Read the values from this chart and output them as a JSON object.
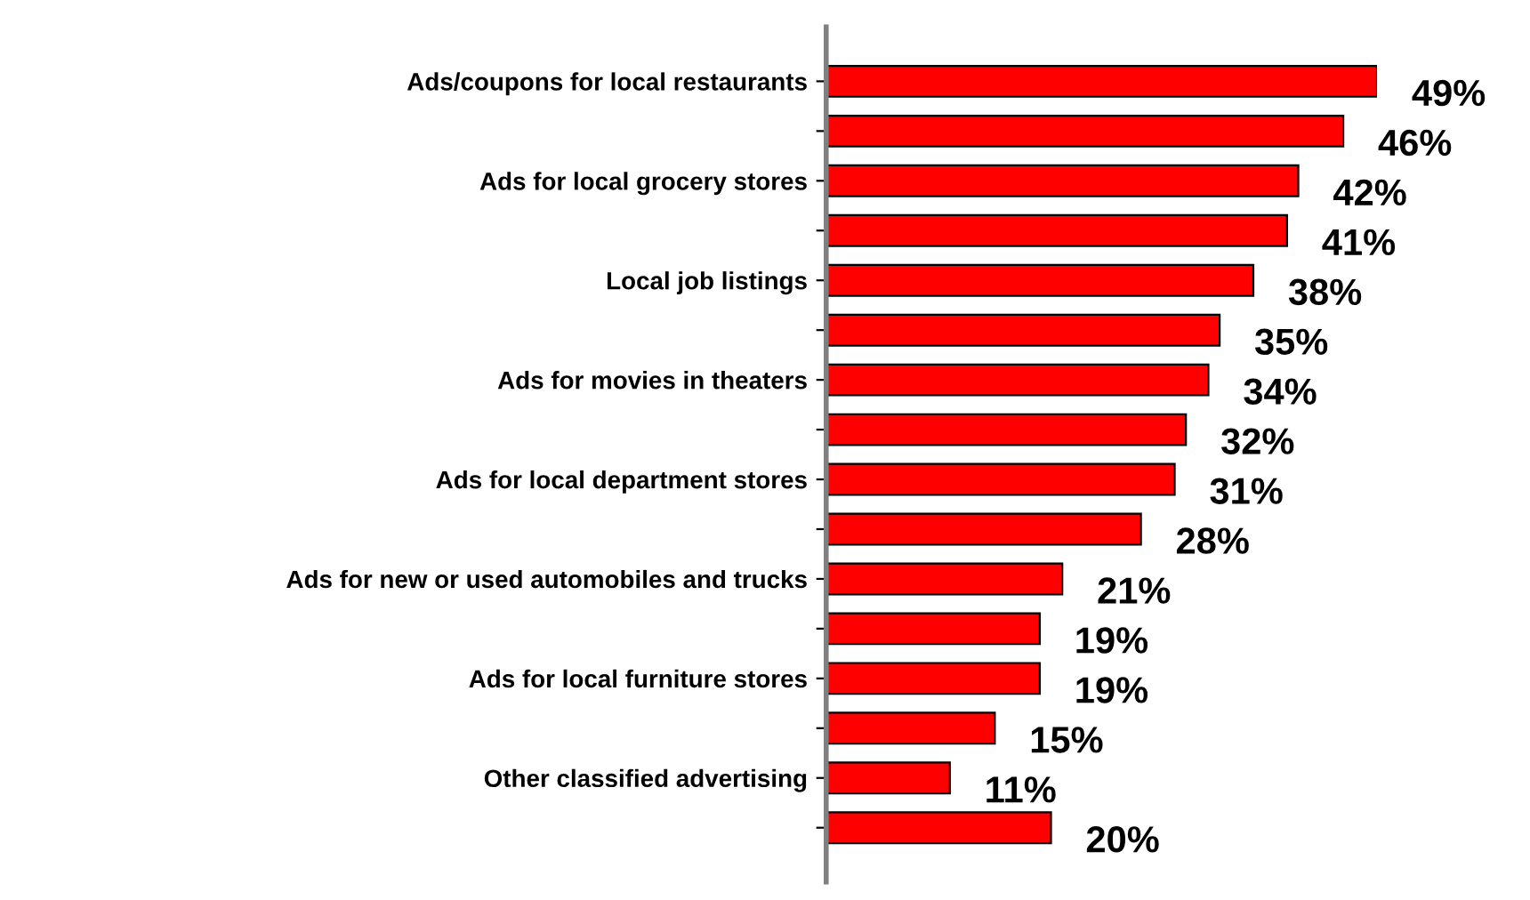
{
  "chart_data": {
    "type": "bar",
    "orientation": "horizontal",
    "categories": [
      "Ads/coupons for local restaurants",
      null,
      "Ads for local grocery stores",
      null,
      "Local job listings",
      null,
      "Ads for movies in theaters",
      null,
      "Ads for local department stores",
      null,
      "Ads for new or used automobiles and trucks",
      null,
      "Ads for local furniture stores",
      null,
      "Other classified advertising",
      null
    ],
    "values": [
      49,
      46,
      42,
      41,
      38,
      35,
      34,
      32,
      31,
      28,
      21,
      19,
      19,
      15,
      11,
      20
    ],
    "value_labels": [
      "49%",
      "46%",
      "42%",
      "41%",
      "38%",
      "35%",
      "34%",
      "32%",
      "31%",
      "28%",
      "21%",
      "19%",
      "19%",
      "15%",
      "11%",
      "20%"
    ],
    "color": "#ff0000",
    "grid": false,
    "legend": false
  }
}
